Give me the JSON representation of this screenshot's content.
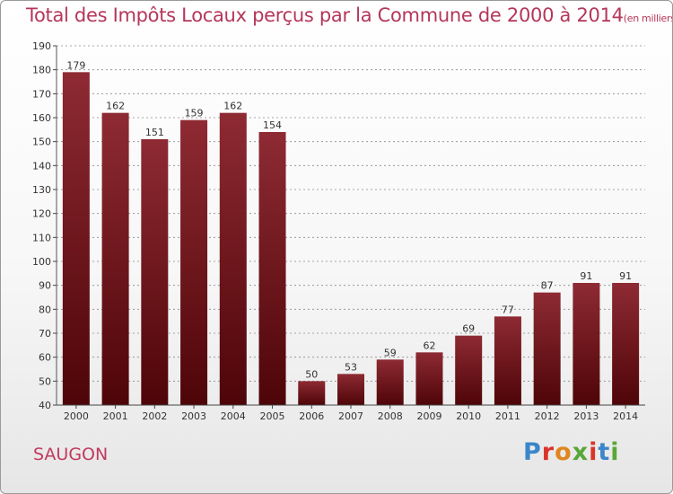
{
  "title": "Total des Impôts Locaux perçus par la Commune de 2000 à 2014",
  "title_unit": "(en milliers d'€)",
  "commune": "SAUGON",
  "logo": "Proxiti",
  "chart_data": {
    "type": "bar",
    "title": "Total des Impôts Locaux perçus par la Commune de 2000 à 2014",
    "unit": "(en milliers d'€)",
    "categories": [
      "2000",
      "2001",
      "2002",
      "2003",
      "2004",
      "2005",
      "2006",
      "2007",
      "2008",
      "2009",
      "2010",
      "2011",
      "2012",
      "2013",
      "2014"
    ],
    "values": [
      179,
      162,
      151,
      159,
      162,
      154,
      50,
      53,
      59,
      62,
      69,
      77,
      87,
      91,
      91
    ],
    "ylim": [
      40,
      190
    ],
    "yticks": [
      40,
      50,
      60,
      70,
      80,
      90,
      100,
      110,
      120,
      130,
      140,
      150,
      160,
      170,
      180,
      190
    ],
    "grid": true,
    "bar_color": "#7a1a22"
  }
}
